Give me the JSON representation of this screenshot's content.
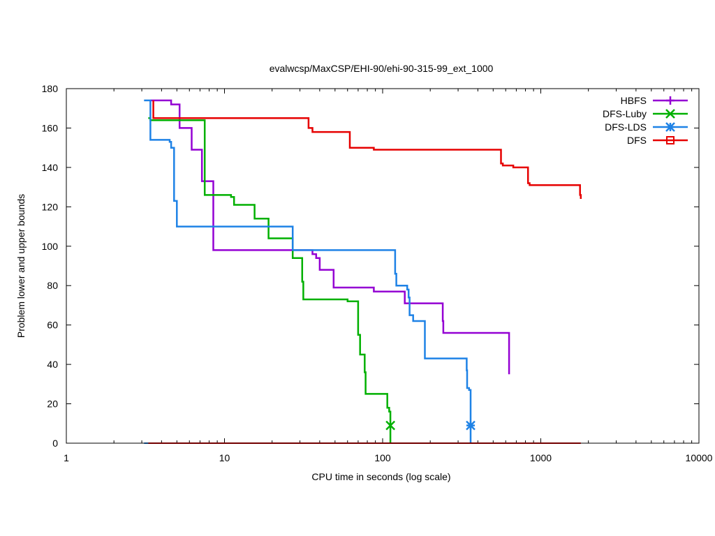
{
  "chart_data": {
    "type": "line",
    "title": "evalwcsp/MaxCSP/EHI-90/ehi-90-315-99_ext_1000",
    "xlabel": "CPU time in seconds (log scale)",
    "ylabel": "Problem lower and upper bounds",
    "xscale": "log",
    "xlim": [
      1,
      10000
    ],
    "ylim": [
      0,
      180
    ],
    "xticks": [
      1,
      10,
      100,
      1000,
      10000
    ],
    "xtick_labels": [
      "1",
      "10",
      "100",
      "1000",
      "10000"
    ],
    "yticks": [
      0,
      20,
      40,
      60,
      80,
      100,
      120,
      140,
      160,
      180
    ],
    "ytick_labels": [
      "0",
      "20",
      "40",
      "60",
      "80",
      "100",
      "120",
      "140",
      "160",
      "180"
    ],
    "legend_position": "top-right",
    "series": [
      {
        "name": "HBFS",
        "color": "#9400d3",
        "marker": "plus",
        "upper": [
          [
            3.4,
            174
          ],
          [
            4.6,
            174
          ],
          [
            4.6,
            172
          ],
          [
            5.2,
            172
          ],
          [
            5.2,
            160
          ],
          [
            6.2,
            160
          ],
          [
            6.2,
            149
          ],
          [
            7.2,
            149
          ],
          [
            7.2,
            133
          ],
          [
            8.5,
            133
          ],
          [
            8.5,
            98
          ],
          [
            36,
            98
          ],
          [
            36,
            96
          ],
          [
            38,
            96
          ],
          [
            38,
            94
          ],
          [
            40,
            94
          ],
          [
            40,
            88
          ],
          [
            49,
            88
          ],
          [
            49,
            79
          ],
          [
            88,
            79
          ],
          [
            88,
            77
          ],
          [
            138,
            77
          ],
          [
            138,
            71
          ],
          [
            240,
            71
          ],
          [
            240,
            62
          ],
          [
            242,
            62
          ],
          [
            242,
            56
          ],
          [
            630,
            56
          ],
          [
            630,
            35
          ]
        ],
        "lower": [
          [
            3.4,
            0
          ],
          [
            630,
            0
          ]
        ]
      },
      {
        "name": "DFS-Luby",
        "color": "#00b000",
        "marker": "x",
        "upper": [
          [
            3.3,
            165
          ],
          [
            3.4,
            165
          ],
          [
            3.4,
            164
          ],
          [
            7.5,
            164
          ],
          [
            7.5,
            126
          ],
          [
            11,
            126
          ],
          [
            11,
            125
          ],
          [
            11.5,
            125
          ],
          [
            11.5,
            121
          ],
          [
            15.5,
            121
          ],
          [
            15.5,
            114
          ],
          [
            19,
            114
          ],
          [
            19,
            104
          ],
          [
            27,
            104
          ],
          [
            27,
            94
          ],
          [
            31,
            94
          ],
          [
            31,
            82
          ],
          [
            31.5,
            82
          ],
          [
            31.5,
            73
          ],
          [
            60,
            73
          ],
          [
            60,
            72
          ],
          [
            70,
            72
          ],
          [
            70,
            55
          ],
          [
            72,
            55
          ],
          [
            72,
            45
          ],
          [
            77,
            45
          ],
          [
            77,
            36
          ],
          [
            78,
            36
          ],
          [
            78,
            25
          ],
          [
            107,
            25
          ],
          [
            107,
            18
          ],
          [
            110,
            18
          ],
          [
            110,
            16
          ],
          [
            112,
            16
          ],
          [
            112,
            0
          ]
        ],
        "lower": [
          [
            3.3,
            0
          ],
          [
            112,
            0
          ]
        ],
        "end_marker": [
          112,
          9
        ]
      },
      {
        "name": "DFS-LDS",
        "color": "#1e82e6",
        "marker": "star",
        "upper": [
          [
            3.1,
            174
          ],
          [
            3.4,
            174
          ],
          [
            3.4,
            154
          ],
          [
            4.5,
            154
          ],
          [
            4.5,
            153
          ],
          [
            4.6,
            153
          ],
          [
            4.6,
            150
          ],
          [
            4.8,
            150
          ],
          [
            4.8,
            123
          ],
          [
            5,
            123
          ],
          [
            5,
            110
          ],
          [
            27,
            110
          ],
          [
            27,
            98
          ],
          [
            120,
            98
          ],
          [
            120,
            86
          ],
          [
            122,
            86
          ],
          [
            122,
            80
          ],
          [
            143,
            80
          ],
          [
            143,
            78
          ],
          [
            146,
            78
          ],
          [
            146,
            74
          ],
          [
            148,
            74
          ],
          [
            148,
            65
          ],
          [
            156,
            65
          ],
          [
            156,
            62
          ],
          [
            185,
            62
          ],
          [
            185,
            43
          ],
          [
            340,
            43
          ],
          [
            340,
            37
          ],
          [
            342,
            37
          ],
          [
            342,
            28
          ],
          [
            352,
            28
          ],
          [
            352,
            27
          ],
          [
            360,
            27
          ],
          [
            360,
            0
          ]
        ],
        "lower": [
          [
            3.1,
            0
          ],
          [
            360,
            0
          ]
        ],
        "end_marker": [
          360,
          9
        ]
      },
      {
        "name": "DFS",
        "color": "#e60000",
        "marker": "square",
        "upper": [
          [
            3.55,
            174
          ],
          [
            3.55,
            165
          ],
          [
            34,
            165
          ],
          [
            34,
            160
          ],
          [
            36,
            160
          ],
          [
            36,
            158
          ],
          [
            62,
            158
          ],
          [
            62,
            150
          ],
          [
            88,
            150
          ],
          [
            88,
            149
          ],
          [
            560,
            149
          ],
          [
            560,
            142
          ],
          [
            575,
            142
          ],
          [
            575,
            141
          ],
          [
            670,
            141
          ],
          [
            670,
            140
          ],
          [
            830,
            140
          ],
          [
            830,
            132
          ],
          [
            850,
            132
          ],
          [
            850,
            131
          ],
          [
            1770,
            131
          ],
          [
            1770,
            126
          ],
          [
            1790,
            126
          ],
          [
            1790,
            124
          ]
        ],
        "lower": [
          [
            3.3,
            0
          ],
          [
            1790,
            0
          ]
        ]
      }
    ]
  }
}
